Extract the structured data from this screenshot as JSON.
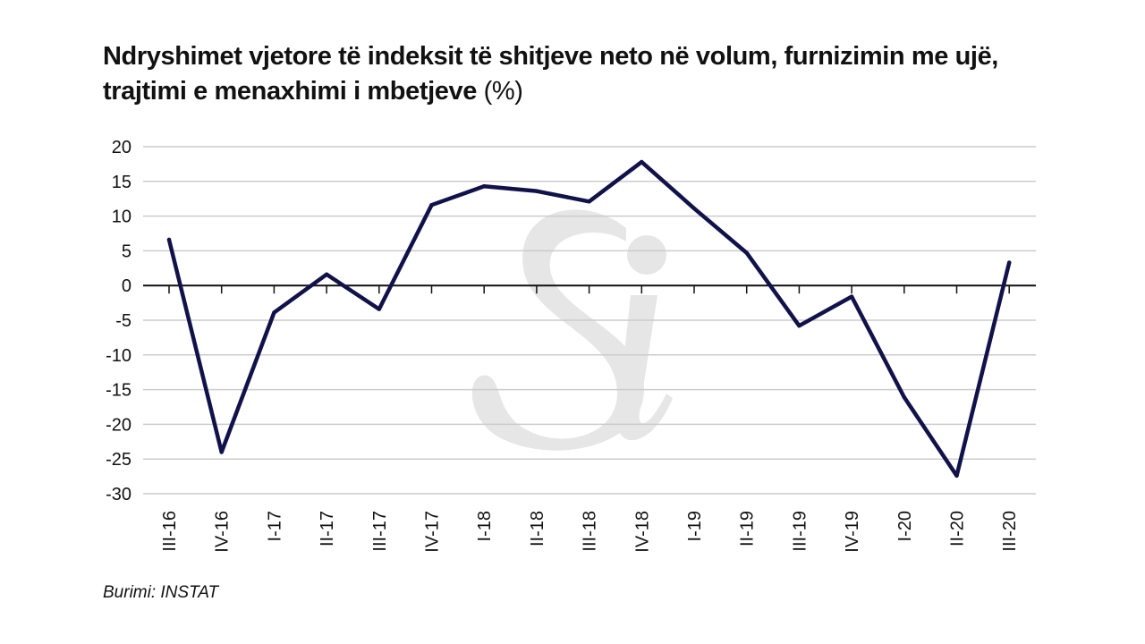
{
  "title": "Ndryshimet vjetore të indeksit të shitjeve neto në volum, furnizimin me ujë, trajtimi e menaxhimi i mbetjeve",
  "title_unit": "(%)",
  "source": "Burimi: INSTAT",
  "colors": {
    "line": "#12124a",
    "grid": "#cccccc",
    "axis": "#111111",
    "watermark": "#e6e6e6"
  },
  "chart_data": {
    "type": "line",
    "categories": [
      "III-16",
      "IV-16",
      "I-17",
      "II-17",
      "III-17",
      "IV-17",
      "I-18",
      "II-18",
      "III-18",
      "IV-18",
      "I-19",
      "II-19",
      "III-19",
      "IV-19",
      "I-20",
      "II-20",
      "III-20"
    ],
    "series": [
      {
        "values": [
          6.6,
          -24.0,
          -3.9,
          1.6,
          -3.4,
          11.6,
          14.3,
          13.6,
          12.1,
          17.8,
          11.1,
          4.7,
          -5.8,
          -1.6,
          -16.1,
          -27.4,
          3.3
        ]
      }
    ],
    "yticks": [
      20,
      15,
      10,
      5,
      0,
      -5,
      -10,
      -15,
      -20,
      -25,
      -30
    ],
    "ylim": [
      -30,
      20
    ],
    "grid": true,
    "legend": "none"
  }
}
